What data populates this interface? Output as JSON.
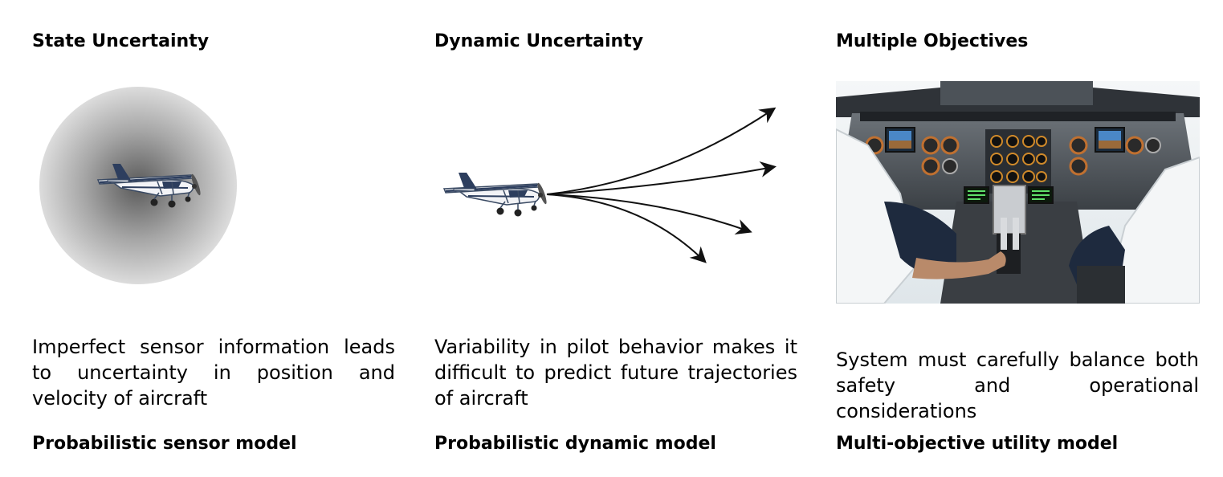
{
  "columns": [
    {
      "heading": "State Uncertainty",
      "description": "Imperfect sensor information leads to uncertainty in position and velocity of aircraft",
      "model": "Probabilistic sensor model",
      "figure_icon": "airplane-in-uncertainty-cloud"
    },
    {
      "heading": "Dynamic Uncertainty",
      "description": "Variability in pilot behavior makes it difficult to predict future trajectories of aircraft",
      "model": "Probabilistic dynamic model",
      "figure_icon": "airplane-with-diverging-trajectory-arrows"
    },
    {
      "heading": "Multiple Objectives",
      "description": "System must carefully balance both safety and operational considerations",
      "model": "Multi-objective utility model",
      "figure_icon": "cockpit-photo-with-pilots"
    }
  ],
  "colors": {
    "text": "#000000",
    "cloud_center": "#5a5a5a",
    "cloud_edge": "#dcdcdc",
    "arrow": "#111111"
  }
}
